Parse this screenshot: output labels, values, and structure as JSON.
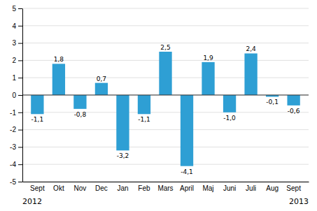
{
  "chart_data": {
    "type": "bar",
    "categories": [
      "Sept",
      "Okt",
      "Nov",
      "Dec",
      "Jan",
      "Feb",
      "Mars",
      "April",
      "Maj",
      "Juni",
      "Juli",
      "Aug",
      "Sept"
    ],
    "values": [
      -1.1,
      1.8,
      -0.8,
      0.7,
      -3.2,
      -1.1,
      2.5,
      -4.1,
      1.9,
      -1.0,
      2.4,
      -0.1,
      -0.6
    ],
    "value_labels": [
      "-1,1",
      "1,8",
      "-0,8",
      "0,7",
      "-3,2",
      "-1,1",
      "2,5",
      "-4,1",
      "1,9",
      "-1,0",
      "2,4",
      "-0,1",
      "-0,6"
    ],
    "data_labels": true,
    "color": "#2e9fd4",
    "ylim": [
      -5,
      5
    ],
    "yticks": [
      -5,
      -4,
      -3,
      -2,
      -1,
      0,
      1,
      2,
      3,
      4,
      5
    ],
    "grid": true,
    "annotations": [
      "2012",
      "2013"
    ]
  }
}
